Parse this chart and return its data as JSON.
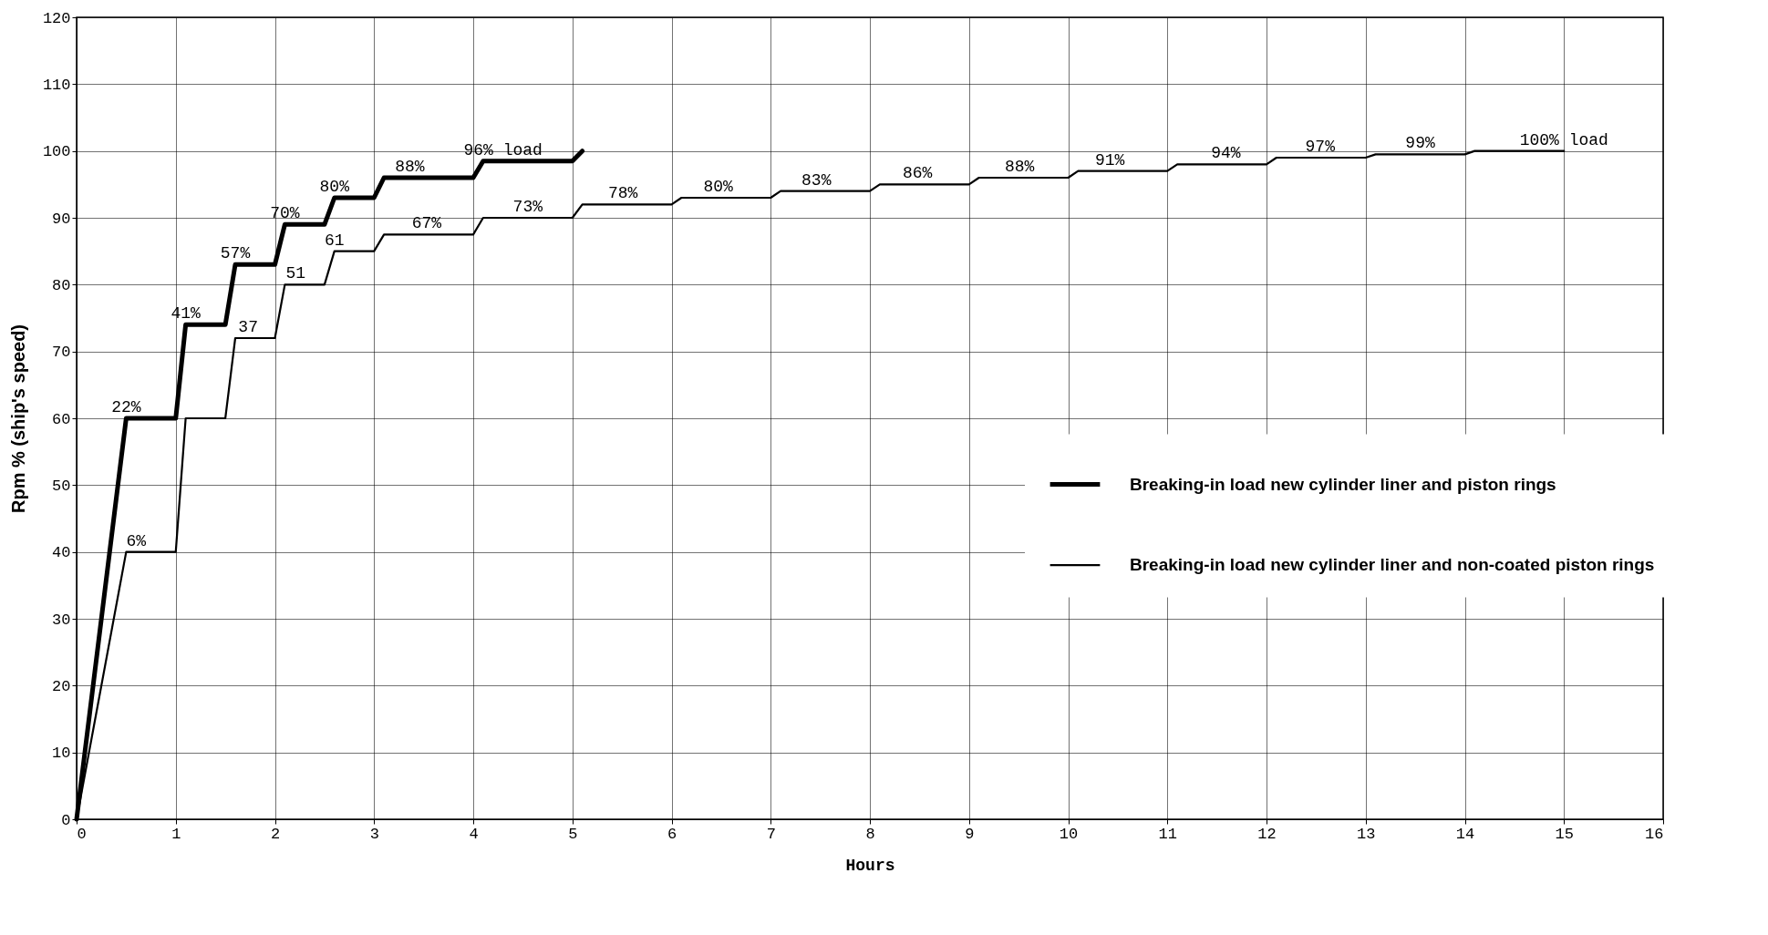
{
  "chart_data": {
    "type": "line",
    "xlabel": "Hours",
    "ylabel": "Rpm % (ship's speed)",
    "xlim": [
      0,
      16
    ],
    "ylim": [
      0,
      120
    ],
    "xticks": [
      0,
      1,
      2,
      3,
      4,
      5,
      6,
      7,
      8,
      9,
      10,
      11,
      12,
      13,
      14,
      15,
      16
    ],
    "yticks": [
      0,
      10,
      20,
      30,
      40,
      50,
      60,
      70,
      80,
      90,
      100,
      110,
      120
    ],
    "grid": true,
    "legend": "right",
    "marker": "none",
    "line_style": "solid",
    "series": [
      {
        "name": "Breaking-in load new cylinder liner and piston rings",
        "color": "#000000",
        "x": [
          0,
          0.5,
          1,
          1.1,
          1.5,
          1.6,
          2,
          2.1,
          2.5,
          2.6,
          3,
          3.1,
          4,
          4.1,
          5,
          5.1
        ],
        "values": [
          0,
          60,
          60,
          74,
          74,
          83,
          83,
          89,
          89,
          93,
          93,
          96,
          96,
          98.5,
          98.5,
          100
        ]
      },
      {
        "name": "Breaking-in load new cylinder liner and non-coated piston rings",
        "color": "#000000",
        "x": [
          0,
          0.5,
          1,
          1.1,
          1.5,
          1.6,
          2,
          2.1,
          2.5,
          2.6,
          3,
          3.1,
          4,
          4.1,
          5,
          5.1,
          6,
          6.1,
          7,
          7.1,
          8,
          8.1,
          9,
          9.1,
          10,
          10.1,
          11,
          11.1,
          12,
          12.1,
          13,
          13.1,
          14,
          14.1,
          15
        ],
        "values": [
          0,
          40,
          40,
          60,
          60,
          72,
          72,
          80,
          80,
          85,
          85,
          87.5,
          87.5,
          90,
          90,
          92,
          92,
          93,
          93,
          94,
          94,
          95,
          95,
          96,
          96,
          97,
          97,
          98,
          98,
          99,
          99,
          99.5,
          99.5,
          100,
          100
        ]
      }
    ],
    "annotations": [
      {
        "text": "22%",
        "x": 0.5,
        "y": 60
      },
      {
        "text": "41%",
        "x": 1.1,
        "y": 74
      },
      {
        "text": "57%",
        "x": 1.6,
        "y": 83
      },
      {
        "text": "70%",
        "x": 2.1,
        "y": 89
      },
      {
        "text": "80%",
        "x": 2.6,
        "y": 93
      },
      {
        "text": "88%",
        "x": 3.36,
        "y": 96
      },
      {
        "text": "96% load",
        "x": 4.3,
        "y": 98.5
      },
      {
        "text": "6%",
        "x": 0.6,
        "y": 40
      },
      {
        "text": "37",
        "x": 1.73,
        "y": 72
      },
      {
        "text": "51",
        "x": 2.21,
        "y": 80
      },
      {
        "text": "61",
        "x": 2.6,
        "y": 85
      },
      {
        "text": "67%",
        "x": 3.53,
        "y": 87.5
      },
      {
        "text": "73%",
        "x": 4.55,
        "y": 90
      },
      {
        "text": "78%",
        "x": 5.51,
        "y": 92
      },
      {
        "text": "80%",
        "x": 6.47,
        "y": 93
      },
      {
        "text": "83%",
        "x": 7.46,
        "y": 94
      },
      {
        "text": "86%",
        "x": 8.48,
        "y": 95
      },
      {
        "text": "88%",
        "x": 9.51,
        "y": 96
      },
      {
        "text": "91%",
        "x": 10.42,
        "y": 97
      },
      {
        "text": "94%",
        "x": 11.59,
        "y": 98
      },
      {
        "text": "97%",
        "x": 12.54,
        "y": 99
      },
      {
        "text": "99%",
        "x": 13.55,
        "y": 99.5
      },
      {
        "text": "100% load",
        "x": 15.0,
        "y": 100
      }
    ]
  }
}
